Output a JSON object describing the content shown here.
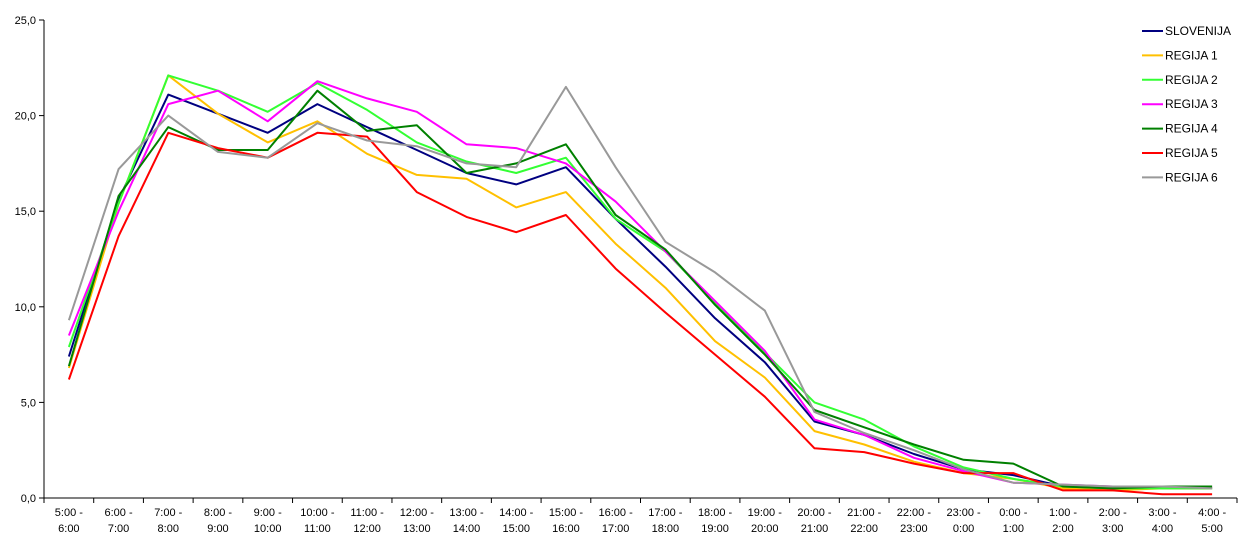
{
  "chart_data": {
    "type": "line",
    "title": "",
    "xlabel": "",
    "ylabel": "",
    "ylim": [
      0,
      25
    ],
    "yticks": [
      "0,0",
      "5,0",
      "10,0",
      "15,0",
      "20,0",
      "25,0"
    ],
    "grid": false,
    "legend_position": "top-right",
    "categories": [
      [
        "5:00 -",
        "6:00"
      ],
      [
        "6:00 -",
        "7:00"
      ],
      [
        "7:00 -",
        "8:00"
      ],
      [
        "8:00 -",
        "9:00"
      ],
      [
        "9:00 -",
        "10:00"
      ],
      [
        "10:00 -",
        "11:00"
      ],
      [
        "11:00 -",
        "12:00"
      ],
      [
        "12:00 -",
        "13:00"
      ],
      [
        "13:00 -",
        "14:00"
      ],
      [
        "14:00 -",
        "15:00"
      ],
      [
        "15:00 -",
        "16:00"
      ],
      [
        "16:00 -",
        "17:00"
      ],
      [
        "17:00 -",
        "18:00"
      ],
      [
        "18:00 -",
        "19:00"
      ],
      [
        "19:00 -",
        "20:00"
      ],
      [
        "20:00 -",
        "21:00"
      ],
      [
        "21:00 -",
        "22:00"
      ],
      [
        "22:00 -",
        "23:00"
      ],
      [
        "23:00 -",
        "0:00"
      ],
      [
        "0:00 -",
        "1:00"
      ],
      [
        "1:00 -",
        "2:00"
      ],
      [
        "2:00 -",
        "3:00"
      ],
      [
        "3:00 -",
        "4:00"
      ],
      [
        "4:00 -",
        "5:00"
      ]
    ],
    "series": [
      {
        "name": "SLOVENIJA",
        "color": "#000080",
        "values": [
          7.4,
          15.6,
          21.1,
          20.1,
          19.1,
          20.6,
          19.4,
          18.2,
          17.0,
          16.4,
          17.3,
          14.6,
          12.1,
          9.4,
          7.1,
          4.0,
          3.3,
          2.3,
          1.5,
          1.2,
          0.6,
          0.5,
          0.5,
          0.5
        ]
      },
      {
        "name": "REGIJA 1",
        "color": "#FFC000",
        "values": [
          6.8,
          15.4,
          22.1,
          20.1,
          18.6,
          19.7,
          18.0,
          16.9,
          16.7,
          15.2,
          16.0,
          13.3,
          11.0,
          8.2,
          6.3,
          3.5,
          2.8,
          1.9,
          1.3,
          1.0,
          0.5,
          0.4,
          0.5,
          0.5
        ]
      },
      {
        "name": "REGIJA 2",
        "color": "#33FF33",
        "values": [
          7.9,
          15.4,
          22.1,
          21.3,
          20.2,
          21.7,
          20.3,
          18.6,
          17.6,
          17.0,
          17.8,
          14.6,
          12.9,
          10.2,
          7.6,
          5.0,
          4.1,
          2.7,
          1.6,
          1.0,
          0.6,
          0.5,
          0.5,
          0.5
        ]
      },
      {
        "name": "REGIJA 3",
        "color": "#FF00FF",
        "values": [
          8.5,
          15.0,
          20.6,
          21.3,
          19.7,
          21.8,
          20.9,
          20.2,
          18.5,
          18.3,
          17.5,
          15.5,
          12.9,
          10.3,
          7.7,
          4.1,
          3.3,
          2.1,
          1.4,
          0.8,
          0.7,
          0.6,
          0.6,
          0.6
        ]
      },
      {
        "name": "REGIJA 4",
        "color": "#008000",
        "values": [
          6.9,
          15.8,
          19.4,
          18.2,
          18.2,
          21.3,
          19.2,
          19.5,
          17.0,
          17.5,
          18.5,
          14.8,
          13.0,
          10.1,
          7.5,
          4.6,
          3.7,
          2.8,
          2.0,
          1.8,
          0.6,
          0.5,
          0.6,
          0.6
        ]
      },
      {
        "name": "REGIJA 5",
        "color": "#FF0000",
        "values": [
          6.2,
          13.7,
          19.1,
          18.3,
          17.8,
          19.1,
          18.9,
          16.0,
          14.7,
          13.9,
          14.8,
          12.0,
          9.7,
          7.5,
          5.3,
          2.6,
          2.4,
          1.8,
          1.3,
          1.3,
          0.4,
          0.4,
          0.2,
          0.2
        ]
      },
      {
        "name": "REGIJA 6",
        "color": "#999999",
        "values": [
          9.3,
          17.2,
          20.0,
          18.1,
          17.8,
          19.6,
          18.7,
          18.4,
          17.5,
          17.3,
          21.5,
          17.3,
          13.4,
          11.8,
          9.8,
          4.5,
          3.4,
          2.5,
          1.5,
          0.8,
          0.7,
          0.6,
          0.6,
          0.5
        ]
      }
    ]
  }
}
